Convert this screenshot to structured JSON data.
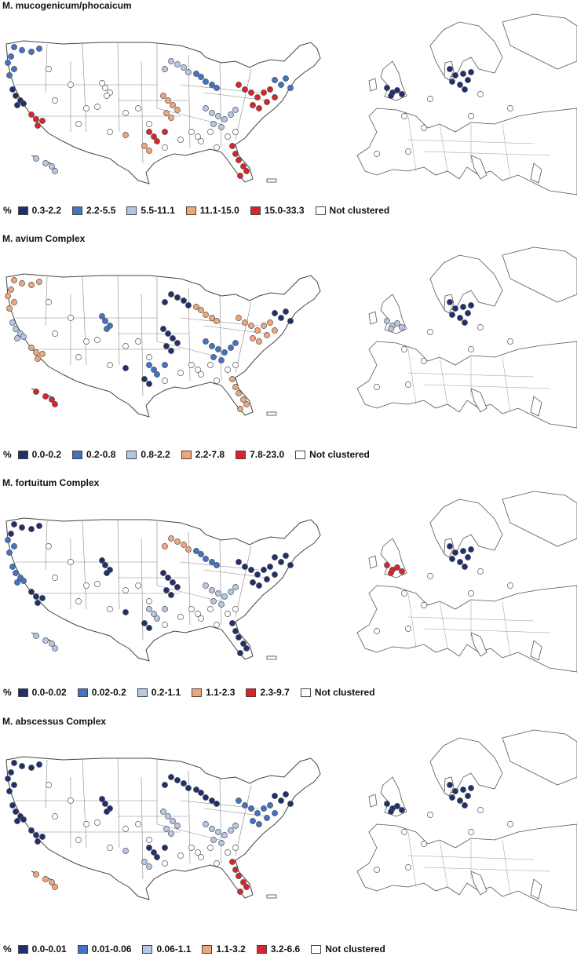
{
  "colors": {
    "dark_blue": "#1f2f6f",
    "mid_blue": "#4472c4",
    "light_blue": "#b4c8e6",
    "salmon": "#f1a679",
    "red": "#d9252a",
    "not_clustered": "#ffffff",
    "outline": "#555555"
  },
  "panels": [
    {
      "title": "M. mucogenicum/phocaicum",
      "percent_label": "%",
      "legend": [
        {
          "label": "0.3-2.2",
          "color": "dark_blue"
        },
        {
          "label": "2.2-5.5",
          "color": "mid_blue"
        },
        {
          "label": "5.5-11.1",
          "color": "light_blue"
        },
        {
          "label": "11.1-15.0",
          "color": "salmon"
        },
        {
          "label": "15.0-33.3",
          "color": "red"
        },
        {
          "label": "Not clustered",
          "color": "not_clustered"
        }
      ],
      "us_sites": {
        "west": "mid_blue",
        "pacific_nw": "mid_blue",
        "norcal": "dark_blue",
        "socal": "red",
        "southwest": "not_clustered",
        "rockies": "not_clustered",
        "plains": "salmon",
        "texas": "red",
        "midwest": "light_blue",
        "great_lakes": "mid_blue",
        "ohio_valley": "light_blue",
        "northeast": "red",
        "new_england": "mid_blue",
        "southeast": "not_clustered",
        "florida": "red",
        "hawaii": "light_blue"
      },
      "eu_sites": {
        "uk": "dark_blue",
        "denmark": "dark_blue",
        "continent": "not_clustered"
      }
    },
    {
      "title": "M. avium Complex",
      "percent_label": "%",
      "legend": [
        {
          "label": "0.0-0.2",
          "color": "dark_blue"
        },
        {
          "label": "0.2-0.8",
          "color": "mid_blue"
        },
        {
          "label": "0.8-2.2",
          "color": "light_blue"
        },
        {
          "label": "2.2-7.8",
          "color": "salmon"
        },
        {
          "label": "7.8-23.0",
          "color": "red"
        },
        {
          "label": "Not clustered",
          "color": "not_clustered"
        }
      ],
      "us_sites": {
        "west": "salmon",
        "pacific_nw": "salmon",
        "norcal": "light_blue",
        "socal": "salmon",
        "southwest": "not_clustered",
        "rockies": "mid_blue",
        "plains": "dark_blue",
        "texas": "mid_blue",
        "midwest": "dark_blue",
        "great_lakes": "salmon",
        "ohio_valley": "mid_blue",
        "northeast": "salmon",
        "new_england": "dark_blue",
        "southeast": "not_clustered",
        "florida": "salmon",
        "hawaii": "red"
      },
      "eu_sites": {
        "uk": "light_blue",
        "denmark": "dark_blue",
        "continent": "not_clustered"
      }
    },
    {
      "title": "M. fortuitum Complex",
      "percent_label": "%",
      "legend": [
        {
          "label": "0.0-0.02",
          "color": "dark_blue"
        },
        {
          "label": "0.02-0.2",
          "color": "mid_blue"
        },
        {
          "label": "0.2-1.1",
          "color": "light_blue"
        },
        {
          "label": "1.1-2.3",
          "color": "salmon"
        },
        {
          "label": "2.3-9.7",
          "color": "red"
        },
        {
          "label": "Not clustered",
          "color": "not_clustered"
        }
      ],
      "us_sites": {
        "west": "dark_blue",
        "pacific_nw": "mid_blue",
        "norcal": "mid_blue",
        "socal": "dark_blue",
        "southwest": "not_clustered",
        "rockies": "dark_blue",
        "plains": "dark_blue",
        "texas": "light_blue",
        "midwest": "salmon",
        "great_lakes": "mid_blue",
        "ohio_valley": "light_blue",
        "northeast": "dark_blue",
        "new_england": "dark_blue",
        "southeast": "not_clustered",
        "florida": "dark_blue",
        "hawaii": "light_blue"
      },
      "eu_sites": {
        "uk": "red",
        "denmark": "dark_blue",
        "continent": "not_clustered"
      }
    },
    {
      "title": "M. abscessus Complex",
      "percent_label": "%",
      "legend": [
        {
          "label": "0.0-0.01",
          "color": "dark_blue"
        },
        {
          "label": "0.01-0.06",
          "color": "mid_blue"
        },
        {
          "label": "0.06-1.1",
          "color": "light_blue"
        },
        {
          "label": "1.1-3.2",
          "color": "salmon"
        },
        {
          "label": "3.2-6.6",
          "color": "red"
        },
        {
          "label": "Not clustered",
          "color": "not_clustered"
        }
      ],
      "us_sites": {
        "west": "dark_blue",
        "pacific_nw": "dark_blue",
        "norcal": "dark_blue",
        "socal": "dark_blue",
        "southwest": "not_clustered",
        "rockies": "dark_blue",
        "plains": "light_blue",
        "texas": "dark_blue",
        "midwest": "dark_blue",
        "great_lakes": "dark_blue",
        "ohio_valley": "light_blue",
        "northeast": "mid_blue",
        "new_england": "dark_blue",
        "southeast": "not_clustered",
        "florida": "red",
        "hawaii": "salmon"
      },
      "eu_sites": {
        "uk": "dark_blue",
        "denmark": "dark_blue",
        "continent": "not_clustered"
      }
    }
  ]
}
